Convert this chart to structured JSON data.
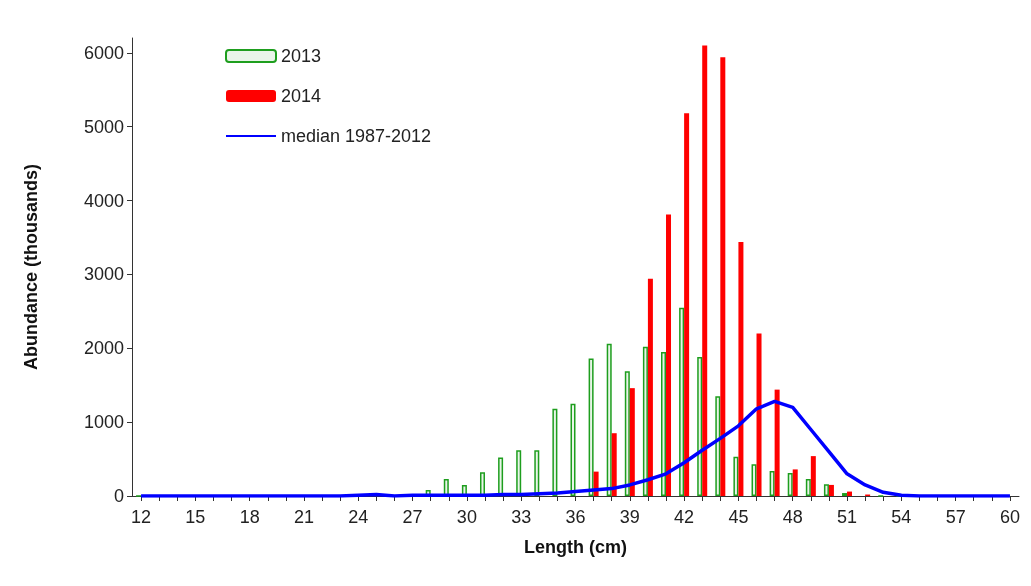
{
  "chart_data": {
    "type": "bar",
    "xlabel": "Length (cm)",
    "ylabel": "Abundance (thousands)",
    "categories": [
      "12",
      null,
      null,
      "15",
      null,
      null,
      "18",
      null,
      null,
      "21",
      null,
      null,
      "24",
      null,
      null,
      "27",
      null,
      null,
      "30",
      null,
      null,
      "33",
      null,
      null,
      "36",
      null,
      null,
      "39",
      null,
      null,
      "42",
      null,
      null,
      "45",
      null,
      null,
      "48",
      null,
      null,
      "51",
      null,
      null,
      "54",
      null,
      null,
      "57",
      null,
      null,
      "60"
    ],
    "series": [
      {
        "name": "2013",
        "color": "#1e9e1e",
        "values": [
          0,
          0,
          0,
          0,
          0,
          0,
          0,
          0,
          0,
          0,
          null,
          0,
          0,
          null,
          0,
          null,
          80,
          230,
          150,
          320,
          520,
          620,
          620,
          1180,
          1250,
          1860,
          2060,
          1690,
          2020,
          1950,
          2550,
          1880,
          1350,
          530,
          430,
          340,
          310,
          230,
          160,
          40,
          null,
          0,
          0,
          0,
          0,
          0,
          0,
          0,
          0
        ]
      },
      {
        "name": "2014",
        "color": "#ff0000",
        "values": [
          0,
          0,
          0,
          0,
          0,
          0,
          0,
          0,
          0,
          0,
          0,
          0,
          0,
          0,
          0,
          0,
          0,
          0,
          0,
          0,
          0,
          0,
          0,
          0,
          0,
          330,
          850,
          1460,
          2940,
          3810,
          5180,
          6100,
          5940,
          3440,
          2200,
          1440,
          360,
          540,
          150,
          60,
          20,
          0,
          0,
          0,
          0,
          0,
          0,
          0,
          0
        ]
      },
      {
        "name": "median 1987-2012",
        "type": "line",
        "color": "#0000ff",
        "values": [
          0,
          0,
          0,
          0,
          0,
          0,
          0,
          0,
          0,
          0,
          0,
          0,
          10,
          20,
          0,
          10,
          10,
          10,
          10,
          10,
          20,
          20,
          30,
          40,
          60,
          80,
          100,
          150,
          220,
          300,
          450,
          620,
          780,
          950,
          1180,
          1280,
          1200,
          900,
          600,
          300,
          150,
          50,
          10,
          0,
          0,
          0,
          0,
          0,
          0
        ]
      }
    ],
    "ylim": [
      0,
      6200
    ],
    "yticks": [
      0,
      1000,
      2000,
      3000,
      4000,
      5000,
      6000
    ],
    "legend": "top left",
    "grid": false,
    "marker": "none",
    "line_style": "solid"
  }
}
